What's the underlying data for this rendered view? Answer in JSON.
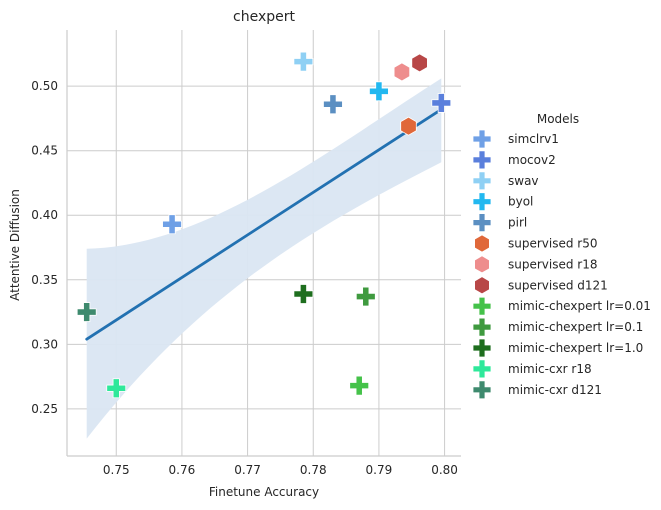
{
  "chart_data": {
    "type": "scatter",
    "title": "chexpert",
    "xlabel": "Finetune Accuracy",
    "ylabel": "Attentive Diffusion",
    "xlim": [
      0.7425,
      0.8025
    ],
    "ylim": [
      0.2135,
      0.5435
    ],
    "xticks": [
      "0.75",
      "0.76",
      "0.77",
      "0.78",
      "0.79",
      "0.80"
    ],
    "yticks": [
      "0.25",
      "0.30",
      "0.35",
      "0.40",
      "0.45",
      "0.50"
    ],
    "grid": true,
    "legend_title": "Models",
    "legend_position": "right",
    "series": [
      {
        "name": "simclrv1",
        "marker": "plus",
        "color": "#6fa0e6",
        "points": [
          [
            0.7585,
            0.393
          ]
        ]
      },
      {
        "name": "mocov2",
        "marker": "plus",
        "color": "#5a7fdc",
        "points": [
          [
            0.7995,
            0.487
          ]
        ]
      },
      {
        "name": "swav",
        "marker": "plus",
        "color": "#8fd0f4",
        "points": [
          [
            0.7785,
            0.519
          ]
        ]
      },
      {
        "name": "byol",
        "marker": "plus",
        "color": "#22b8f0",
        "points": [
          [
            0.79,
            0.496
          ]
        ]
      },
      {
        "name": "pirl",
        "marker": "plus",
        "color": "#5b8fc2",
        "points": [
          [
            0.783,
            0.486
          ]
        ]
      },
      {
        "name": "supervised r50",
        "marker": "hexagon",
        "color": "#e0683a",
        "points": [
          [
            0.7945,
            0.469
          ]
        ]
      },
      {
        "name": "supervised r18",
        "marker": "hexagon",
        "color": "#ee8d8d",
        "points": [
          [
            0.7935,
            0.511
          ]
        ]
      },
      {
        "name": "supervised d121",
        "marker": "hexagon",
        "color": "#b84747",
        "points": [
          [
            0.7962,
            0.518
          ]
        ]
      },
      {
        "name": "mimic-chexpert lr=0.01",
        "marker": "plus",
        "color": "#45c24a",
        "points": [
          [
            0.787,
            0.268
          ]
        ]
      },
      {
        "name": "mimic-chexpert lr=0.1",
        "marker": "plus",
        "color": "#3f9a3f",
        "points": [
          [
            0.788,
            0.337
          ]
        ]
      },
      {
        "name": "mimic-chexpert lr=1.0",
        "marker": "plus",
        "color": "#1e6e1e",
        "points": [
          [
            0.7785,
            0.339
          ]
        ]
      },
      {
        "name": "mimic-cxr r18",
        "marker": "plus",
        "color": "#2ee89a",
        "points": [
          [
            0.75,
            0.266
          ]
        ]
      },
      {
        "name": "mimic-cxr d121",
        "marker": "plus",
        "color": "#3e8a6e",
        "points": [
          [
            0.7455,
            0.325
          ]
        ]
      }
    ],
    "regression": {
      "color": "#2271b1",
      "band_color": "#dae6f2",
      "x": [
        0.7455,
        0.7995
      ],
      "y": [
        0.304,
        0.482
      ],
      "band_upper": [
        0.374,
        0.506
      ],
      "band_lower": [
        0.227,
        0.441
      ]
    }
  }
}
